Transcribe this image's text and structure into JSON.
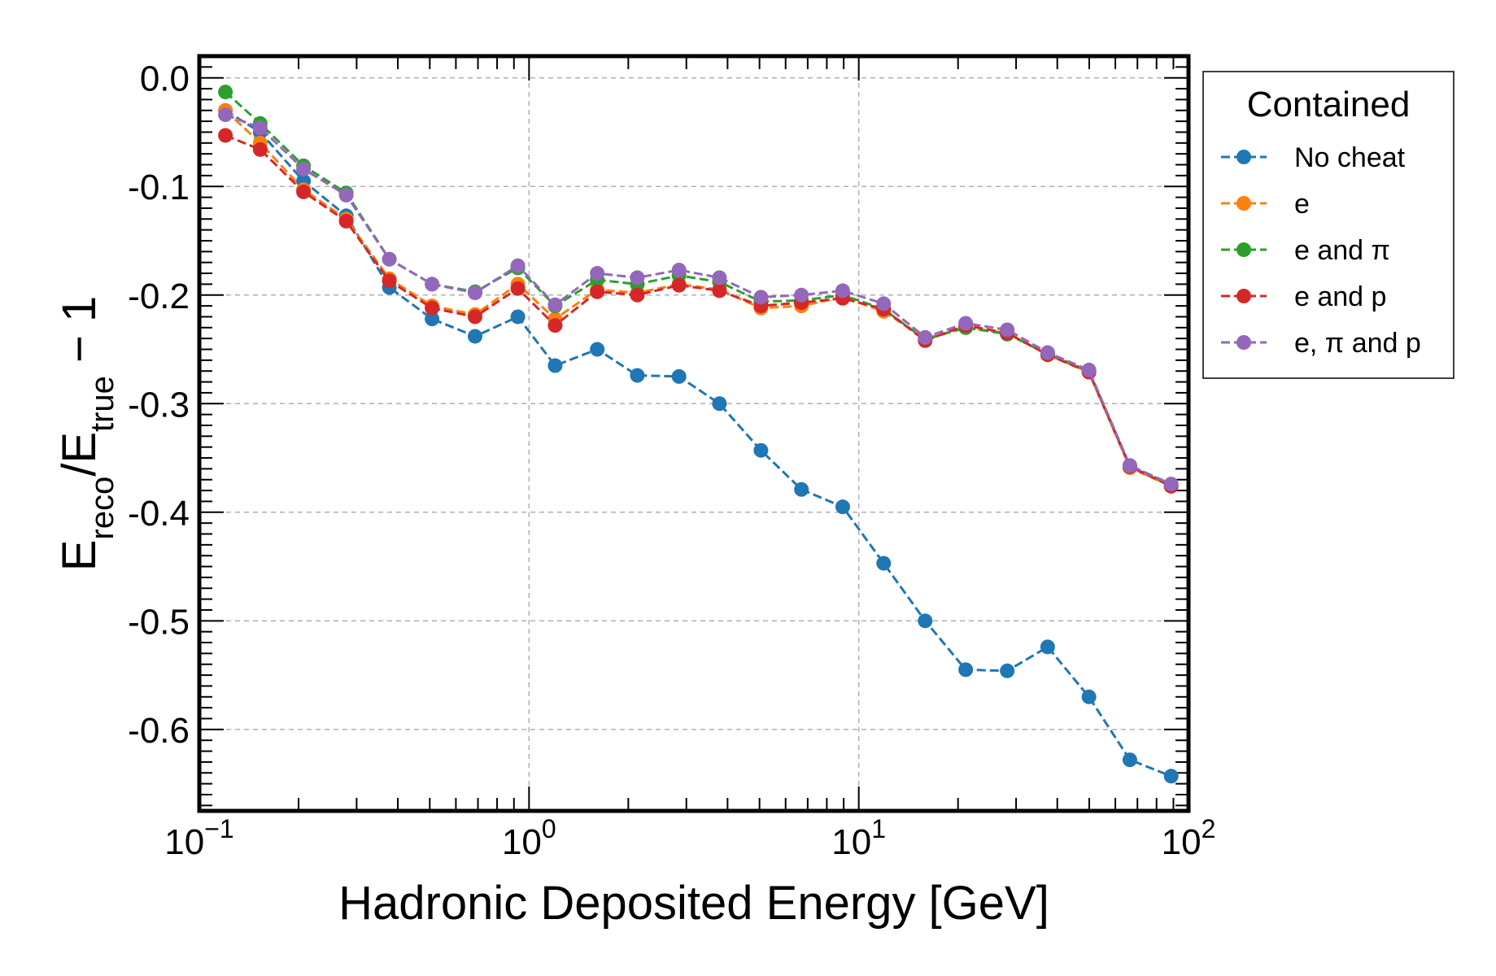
{
  "chart_data": {
    "type": "line",
    "xlabel": "Hadronic Deposited Energy [GeV]",
    "ylabel": {
      "base1": "E",
      "sub1": "reco",
      "slash": "/",
      "base2": "E",
      "sub2": "true",
      "suffix": " − 1"
    },
    "xscale": "log",
    "xlim": [
      0.1,
      100
    ],
    "ylim": [
      -0.675,
      0.02
    ],
    "x_ticks": [
      {
        "value": 0.1,
        "base": "10",
        "exp": "−1"
      },
      {
        "value": 1,
        "base": "10",
        "exp": "0"
      },
      {
        "value": 10,
        "base": "10",
        "exp": "1"
      },
      {
        "value": 100,
        "base": "10",
        "exp": "2"
      }
    ],
    "y_ticks": [
      0.0,
      -0.1,
      -0.2,
      -0.3,
      -0.4,
      -0.5,
      -0.6
    ],
    "y_tick_labels": [
      "0.0",
      "-0.1",
      "-0.2",
      "-0.3",
      "-0.4",
      "-0.5",
      "-0.6"
    ],
    "grid": true,
    "legend": {
      "title": "Contained",
      "placement": "outside-right-top"
    },
    "x": [
      0.12,
      0.153,
      0.207,
      0.279,
      0.377,
      0.508,
      0.686,
      0.925,
      1.2,
      1.61,
      2.13,
      2.85,
      3.78,
      5.05,
      6.7,
      8.94,
      11.9,
      15.9,
      21.1,
      28.2,
      37.4,
      49.9,
      66.4,
      88.6
    ],
    "series": [
      {
        "name": "No cheat",
        "color": "#1f77b4",
        "values": [
          -0.03,
          -0.05,
          -0.095,
          -0.127,
          -0.193,
          -0.222,
          -0.238,
          -0.22,
          -0.265,
          -0.25,
          -0.274,
          -0.275,
          -0.3,
          -0.343,
          -0.379,
          -0.395,
          -0.447,
          -0.5,
          -0.545,
          -0.546,
          -0.524,
          -0.57,
          -0.628,
          -0.643
        ]
      },
      {
        "name": "e",
        "color": "#ff7f0e",
        "values": [
          -0.03,
          -0.06,
          -0.103,
          -0.13,
          -0.185,
          -0.21,
          -0.218,
          -0.19,
          -0.222,
          -0.195,
          -0.198,
          -0.19,
          -0.195,
          -0.212,
          -0.21,
          -0.202,
          -0.215,
          -0.24,
          -0.23,
          -0.235,
          -0.255,
          -0.271,
          -0.359,
          -0.376
        ]
      },
      {
        "name": "e and π",
        "color": "#2ca02c",
        "values": [
          -0.013,
          -0.042,
          -0.081,
          -0.106,
          -0.167,
          -0.19,
          -0.197,
          -0.175,
          -0.21,
          -0.186,
          -0.19,
          -0.182,
          -0.188,
          -0.206,
          -0.205,
          -0.2,
          -0.213,
          -0.241,
          -0.23,
          -0.236,
          -0.254,
          -0.27,
          -0.357,
          -0.375
        ]
      },
      {
        "name": "e and p",
        "color": "#d62728",
        "values": [
          -0.053,
          -0.066,
          -0.105,
          -0.132,
          -0.187,
          -0.212,
          -0.22,
          -0.194,
          -0.228,
          -0.197,
          -0.2,
          -0.191,
          -0.196,
          -0.21,
          -0.207,
          -0.203,
          -0.213,
          -0.242,
          -0.228,
          -0.235,
          -0.255,
          -0.271,
          -0.358,
          -0.376
        ]
      },
      {
        "name": "e, π and p",
        "color": "#9467bd",
        "values": [
          -0.034,
          -0.046,
          -0.084,
          -0.108,
          -0.167,
          -0.19,
          -0.198,
          -0.173,
          -0.209,
          -0.18,
          -0.184,
          -0.177,
          -0.184,
          -0.202,
          -0.2,
          -0.196,
          -0.208,
          -0.239,
          -0.226,
          -0.232,
          -0.253,
          -0.269,
          -0.357,
          -0.374
        ]
      }
    ]
  }
}
